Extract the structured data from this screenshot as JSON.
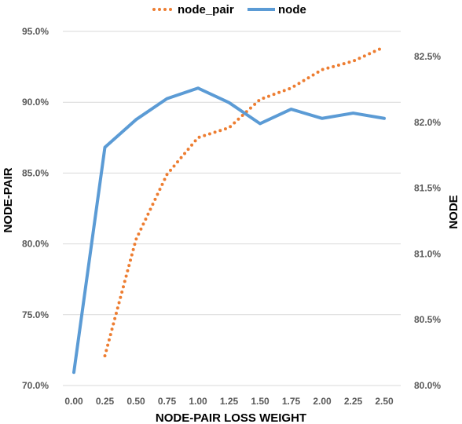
{
  "chart_data": {
    "type": "line",
    "title": "",
    "xlabel": "NODE-PAIR LOSS WEIGHT",
    "ylabel_left": "NODE-PAIR",
    "ylabel_right": "NODE",
    "x": [
      0.0,
      0.25,
      0.5,
      0.75,
      1.0,
      1.25,
      1.5,
      1.75,
      2.0,
      2.25,
      2.5
    ],
    "x_tick_labels": [
      "0.00",
      "0.25",
      "0.50",
      "0.75",
      "1.00",
      "1.25",
      "1.50",
      "1.75",
      "2.00",
      "2.25",
      "2.50"
    ],
    "y_left_range": [
      70.0,
      95.0
    ],
    "y_left_tick_labels": [
      "95.0%",
      "90.0%",
      "85.0%",
      "80.0%",
      "75.0%",
      "70.0%"
    ],
    "y_right_range": [
      80.0,
      82.75
    ],
    "y_right_tick_labels": [
      "82.5%",
      "82.0%",
      "81.5%",
      "81.0%",
      "80.5%",
      "80.0%"
    ],
    "grid": true,
    "legend_position": "top",
    "series": [
      {
        "name": "node_pair",
        "axis": "left",
        "style": "dotted",
        "color": "#ED7D31",
        "x": [
          0.25,
          0.5,
          0.75,
          1.0,
          1.25,
          1.5,
          1.75,
          2.0,
          2.25,
          2.5
        ],
        "values": [
          72.1,
          80.3,
          84.9,
          87.5,
          88.2,
          90.2,
          91.0,
          92.3,
          92.9,
          93.9
        ]
      },
      {
        "name": "node",
        "axis": "right",
        "style": "solid",
        "color": "#5B9BD5",
        "x": [
          0.0,
          0.25,
          0.5,
          0.75,
          1.0,
          1.25,
          1.5,
          1.75,
          2.0,
          2.25,
          2.5
        ],
        "values": [
          80.1,
          81.81,
          82.02,
          82.18,
          82.26,
          82.15,
          81.99,
          82.1,
          82.03,
          82.07,
          82.03
        ]
      }
    ]
  }
}
